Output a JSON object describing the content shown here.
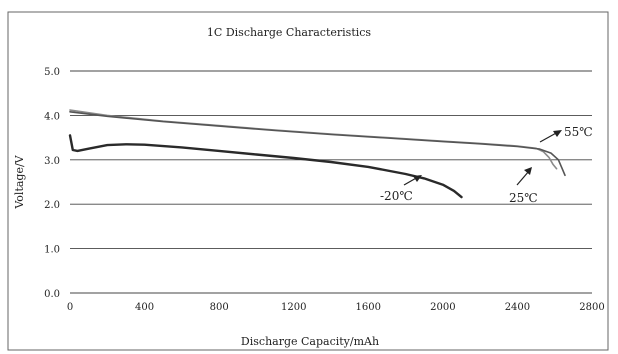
{
  "chart_data": {
    "type": "line",
    "title": "1C Discharge Characteristics",
    "xlabel": "Discharge Capacity/mAh",
    "ylabel": "Voltage/V",
    "xlim": [
      0,
      2800
    ],
    "ylim": [
      0,
      5
    ],
    "xticks": [
      "0",
      "400",
      "800",
      "1200",
      "1600",
      "2000",
      "2400",
      "2800"
    ],
    "yticks": [
      "0.0",
      "1.0",
      "2.0",
      "3.0",
      "4.0",
      "5.0"
    ],
    "grid": "horizontal",
    "colors": {
      "hot": "#8a8a8a",
      "room": "#555555",
      "cold": "#2a2a2a"
    },
    "series": [
      {
        "name": "55℃",
        "x": [
          0,
          200,
          500,
          800,
          1100,
          1400,
          1700,
          2000,
          2200,
          2400,
          2500,
          2540,
          2570,
          2590,
          2610
        ],
        "y": [
          4.12,
          4.0,
          3.87,
          3.77,
          3.67,
          3.58,
          3.5,
          3.42,
          3.37,
          3.31,
          3.26,
          3.18,
          3.05,
          2.9,
          2.8
        ]
      },
      {
        "name": "25℃",
        "x": [
          0,
          200,
          500,
          800,
          1100,
          1400,
          1700,
          2000,
          2200,
          2400,
          2520,
          2580,
          2620,
          2640,
          2655
        ],
        "y": [
          4.08,
          3.98,
          3.86,
          3.76,
          3.66,
          3.57,
          3.49,
          3.41,
          3.36,
          3.3,
          3.24,
          3.15,
          3.0,
          2.8,
          2.65
        ]
      },
      {
        "name": "-20℃",
        "x": [
          0,
          15,
          40,
          100,
          200,
          300,
          400,
          600,
          800,
          1000,
          1200,
          1400,
          1600,
          1800,
          1900,
          2000,
          2060,
          2100
        ],
        "y": [
          3.55,
          3.22,
          3.2,
          3.25,
          3.33,
          3.35,
          3.34,
          3.28,
          3.2,
          3.12,
          3.04,
          2.95,
          2.84,
          2.68,
          2.58,
          2.44,
          2.3,
          2.16
        ]
      }
    ],
    "annotations": [
      {
        "text": "55℃",
        "series": "55℃"
      },
      {
        "text": "25℃",
        "series": "25℃"
      },
      {
        "text": "-20℃",
        "series": "-20℃"
      }
    ]
  }
}
